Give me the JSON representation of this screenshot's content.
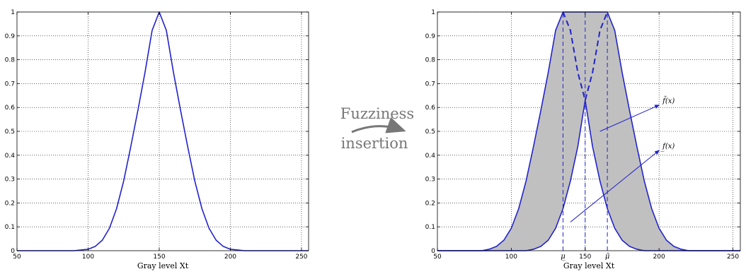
{
  "center_text": {
    "line1": "Fuzziness",
    "line2": "insertion"
  },
  "chart_data": [
    {
      "type": "line",
      "title": "",
      "xlabel": "Gray level Xt",
      "ylabel": "",
      "xlim": [
        50,
        255
      ],
      "ylim": [
        0,
        1
      ],
      "xticks": [
        50,
        100,
        150,
        200,
        250
      ],
      "yticks": [
        0,
        0.1,
        0.2,
        0.3,
        0.4,
        0.5,
        0.6,
        0.7,
        0.8,
        0.9,
        1
      ],
      "grid": true,
      "series": [
        {
          "color": "#2222cc",
          "x": [
            50,
            90,
            100,
            105,
            110,
            115,
            120,
            125,
            130,
            135,
            140,
            145,
            150,
            155,
            160,
            165,
            170,
            175,
            180,
            185,
            190,
            195,
            200,
            210,
            255
          ],
          "y": [
            0,
            0,
            0.006,
            0.018,
            0.044,
            0.094,
            0.176,
            0.292,
            0.436,
            0.588,
            0.747,
            0.923,
            1,
            0.923,
            0.747,
            0.588,
            0.436,
            0.292,
            0.176,
            0.094,
            0.044,
            0.018,
            0.006,
            0,
            0
          ]
        }
      ]
    },
    {
      "type": "area",
      "title": "",
      "xlabel": "Gray level Xt",
      "ylabel": "",
      "xlim": [
        50,
        255
      ],
      "ylim": [
        0,
        1
      ],
      "xticks": [
        50,
        100,
        150,
        200,
        250
      ],
      "xtick_labels": [
        "50",
        "100",
        "150",
        "200",
        "250"
      ],
      "extra_xticks": [
        {
          "x": 135,
          "label": "μ̲"
        },
        {
          "x": 165,
          "label": "μ̄"
        }
      ],
      "yticks": [
        0,
        0.1,
        0.2,
        0.3,
        0.4,
        0.5,
        0.6,
        0.7,
        0.8,
        0.9,
        1
      ],
      "grid": true,
      "series": [
        {
          "role": "upper",
          "color": "#2222cc",
          "fill": "#c0c0c0",
          "x": [
            50,
            80,
            85,
            90,
            95,
            100,
            105,
            110,
            115,
            120,
            125,
            130,
            135,
            140,
            150,
            160,
            165,
            170,
            175,
            180,
            185,
            190,
            195,
            200,
            205,
            210,
            215,
            220,
            255
          ],
          "y": [
            0,
            0,
            0.006,
            0.018,
            0.044,
            0.094,
            0.176,
            0.292,
            0.436,
            0.588,
            0.747,
            0.923,
            1,
            1,
            1,
            1,
            1,
            0.923,
            0.747,
            0.588,
            0.436,
            0.292,
            0.176,
            0.094,
            0.044,
            0.018,
            0.006,
            0,
            0
          ]
        },
        {
          "role": "lower",
          "color": "#2222cc",
          "x": [
            50,
            110,
            115,
            120,
            125,
            130,
            135,
            140,
            145,
            150,
            155,
            160,
            165,
            170,
            175,
            180,
            185,
            190,
            195,
            255
          ],
          "y": [
            0,
            0,
            0.006,
            0.018,
            0.044,
            0.094,
            0.176,
            0.292,
            0.436,
            0.63,
            0.436,
            0.292,
            0.176,
            0.094,
            0.044,
            0.018,
            0.006,
            0,
            0,
            0
          ]
        },
        {
          "role": "dashed-peaks",
          "color": "#2222cc",
          "dash": true,
          "x": [
            135,
            140,
            145,
            150,
            155,
            160,
            165
          ],
          "y": [
            1,
            0.923,
            0.747,
            0.63,
            0.747,
            0.923,
            1
          ]
        }
      ],
      "vlines": [
        135,
        150,
        165
      ],
      "annotations": [
        {
          "text": "f̄(x)",
          "arrow_from": [
            160,
            0.5
          ],
          "arrow_to": [
            200,
            0.61
          ]
        },
        {
          "text": "f̲(x)",
          "arrow_from": [
            140,
            0.12
          ],
          "arrow_to": [
            200,
            0.42
          ]
        }
      ]
    }
  ]
}
